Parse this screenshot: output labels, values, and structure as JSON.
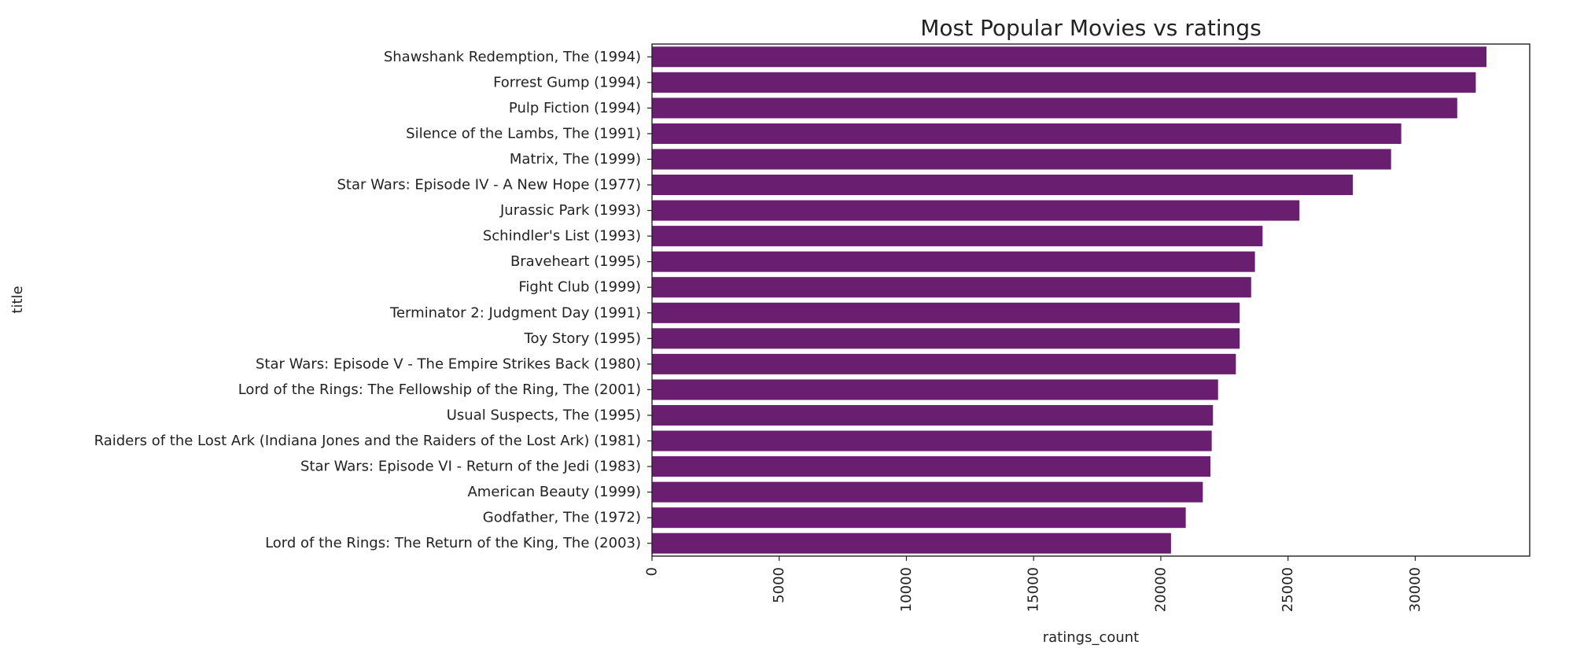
{
  "chart_data": {
    "type": "bar",
    "orientation": "horizontal",
    "title": "Most Popular Movies vs ratings",
    "xlabel": "ratings_count",
    "ylabel": "title",
    "xlim": [
      0,
      34500
    ],
    "xticks": [
      0,
      5000,
      10000,
      15000,
      20000,
      25000,
      30000
    ],
    "xtick_labels": [
      "0",
      "5000",
      "10000",
      "15000",
      "20000",
      "25000",
      "30000"
    ],
    "xtick_label_rotation": "vertical",
    "grid": false,
    "bar_color": "#6a1e6f",
    "categories": [
      "Shawshank Redemption, The (1994)",
      "Forrest Gump (1994)",
      "Pulp Fiction (1994)",
      "Silence of the Lambs, The (1991)",
      "Matrix, The (1999)",
      "Star Wars: Episode IV - A New Hope (1977)",
      "Jurassic Park (1993)",
      "Schindler's List (1993)",
      "Braveheart (1995)",
      "Fight Club (1999)",
      "Terminator 2: Judgment Day (1991)",
      "Toy Story (1995)",
      "Star Wars: Episode V - The Empire Strikes Back (1980)",
      "Lord of the Rings: The Fellowship of the Ring, The (2001)",
      "Usual Suspects, The (1995)",
      "Raiders of the Lost Ark (Indiana Jones and the Raiders of the Lost Ark) (1981)",
      "Star Wars: Episode VI - Return of the Jedi (1983)",
      "American Beauty (1999)",
      "Godfather, The (1972)",
      "Lord of the Rings: The Return of the King, The (2003)"
    ],
    "values": [
      32800,
      32380,
      31650,
      29450,
      29050,
      27550,
      25450,
      24000,
      23700,
      23550,
      23100,
      23100,
      22950,
      22250,
      22050,
      22000,
      21950,
      21650,
      20980,
      20400
    ]
  }
}
